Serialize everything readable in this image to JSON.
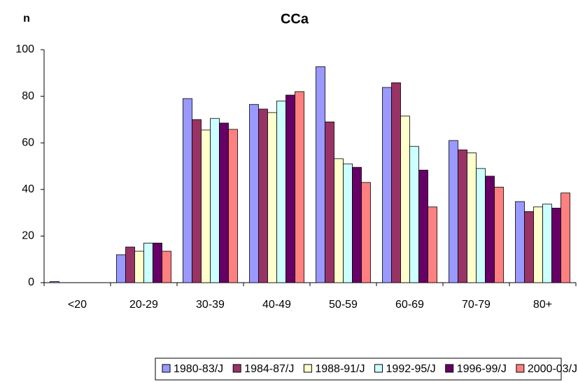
{
  "chart_data": {
    "type": "bar",
    "title": "CCa",
    "y_label": "n",
    "categories": [
      "<20",
      "20-29",
      "30-39",
      "40-49",
      "50-59",
      "60-69",
      "70-79",
      "80+"
    ],
    "series": [
      {
        "name": "1980-83/J",
        "color": "#9999ff",
        "values": [
          0.5,
          12,
          79,
          76.5,
          92.7,
          83.8,
          61,
          34.8
        ]
      },
      {
        "name": "1984-87/J",
        "color": "#993366",
        "values": [
          0,
          15.3,
          70,
          74.5,
          69,
          85.8,
          57,
          30.5
        ]
      },
      {
        "name": "1988-91/J",
        "color": "#ffffcc",
        "values": [
          0,
          13.5,
          65.5,
          73,
          53.2,
          71.5,
          55.7,
          32.5
        ]
      },
      {
        "name": "1992-95/J",
        "color": "#ccffff",
        "values": [
          0,
          17,
          70.5,
          78,
          51,
          58.5,
          49,
          33.7
        ]
      },
      {
        "name": "1996-99/J",
        "color": "#660066",
        "values": [
          0,
          17,
          68.5,
          80.5,
          49.5,
          48.3,
          45.7,
          32
        ]
      },
      {
        "name": "2000-03/J",
        "color": "#ff8080",
        "values": [
          0,
          13.5,
          65.8,
          82,
          43,
          32.5,
          41,
          38.5
        ]
      }
    ],
    "ylim": [
      0,
      100
    ],
    "yticks": [
      0,
      20,
      40,
      60,
      80,
      100
    ],
    "grid": false,
    "legend": "bottom"
  }
}
